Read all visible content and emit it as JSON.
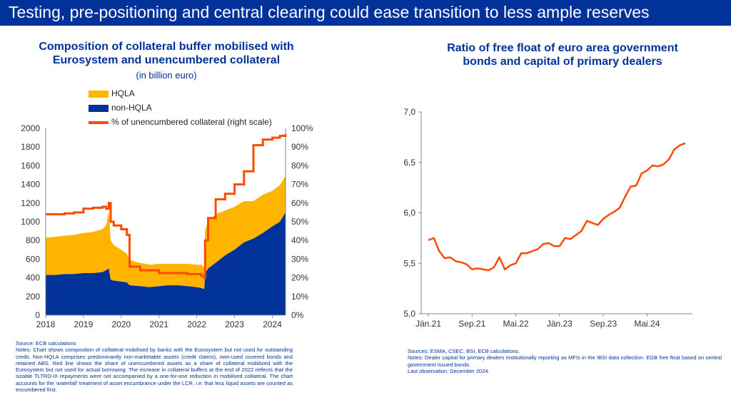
{
  "banner": {
    "title": "Testing, pre-positioning and central clearing could ease transition to less ample reserves"
  },
  "colors": {
    "banner": "#003299",
    "hqla": "#FFB400",
    "non_hqla": "#003299",
    "line": "#FF4B00"
  },
  "left_chart": {
    "title_line1": "Composition of collateral buffer mobilised with",
    "title_line2": "Eurosystem and unencumbered collateral",
    "subtitle": "(in billion euro)",
    "legend": {
      "hqla": "HQLA",
      "non_hqla": "non-HQLA",
      "line": "% of unencumbered collateral (right scale)"
    },
    "notes": {
      "source": "Source: ECB calculations",
      "body": "Notes: Chart shows composition of collateral mobilised by banks with the Eurosystem but not used for outstanding credit. Non-HQLA comprises predominantly non-marketable assets (credit claims), own-used covered bonds and retained ABS. Red line shows the share of unencumbered assets as a share of collateral mobilized with the Eurosystem but not used for actual borrowing. The increase in collateral buffers at the end of 2022 reflects that the sizable TLTRO-III repayments were not accompanied by a one-for-one reduction in mobilised collateral. The chart accounts for the ‘waterfall’ treatment of asset encumbrance under the LCR, i.e. that less liquid assets are counted as encumbered first."
    }
  },
  "right_chart": {
    "title_line1": "Ratio of free float of euro area government",
    "title_line2": "bonds and capital of primary dealers",
    "notes": {
      "source": "Sources: ESMA, CSEC, BSI, ECB calculations.",
      "body": "Notes: Dealer capital for primary dealers institutionally reporting as MFIs in the IBSI data collection. EGB free float based on central government issued bonds.",
      "last": "Last observation: December 2024."
    }
  },
  "chart_data": [
    {
      "type": "area",
      "title": "Composition of collateral buffer mobilised with Eurosystem and unencumbered collateral",
      "subtitle": "(in billion euro)",
      "x_ticks": [
        "2018",
        "2019",
        "2020",
        "2021",
        "2022",
        "2023",
        "2024"
      ],
      "xlim": [
        2018.0,
        2024.35
      ],
      "ylim": [
        0,
        2000
      ],
      "y_ticks": [
        "0",
        "200",
        "400",
        "600",
        "800",
        "1000",
        "1200",
        "1400",
        "1600",
        "1800",
        "2000"
      ],
      "y2lim": [
        0,
        100
      ],
      "y2_ticks": [
        "0%",
        "10%",
        "20%",
        "30%",
        "40%",
        "50%",
        "60%",
        "70%",
        "80%",
        "90%",
        "100%"
      ],
      "legend_position": "top",
      "x": [
        2018.0,
        2018.25,
        2018.5,
        2018.75,
        2019.0,
        2019.25,
        2019.5,
        2019.6,
        2019.67,
        2019.72,
        2019.8,
        2020.0,
        2020.15,
        2020.22,
        2020.5,
        2020.75,
        2021.0,
        2021.25,
        2021.5,
        2021.75,
        2022.0,
        2022.12,
        2022.2,
        2022.22,
        2022.3,
        2022.5,
        2022.75,
        2023.0,
        2023.25,
        2023.5,
        2023.75,
        2024.0,
        2024.2,
        2024.35
      ],
      "series": [
        {
          "name": "non-HQLA",
          "kind": "stacked_area",
          "values": [
            430,
            430,
            440,
            440,
            450,
            450,
            460,
            480,
            500,
            380,
            370,
            360,
            350,
            320,
            310,
            300,
            310,
            320,
            320,
            310,
            300,
            290,
            280,
            450,
            500,
            560,
            640,
            700,
            780,
            820,
            880,
            950,
            1000,
            1100
          ]
        },
        {
          "name": "HQLA",
          "kind": "stacked_area",
          "values": [
            400,
            410,
            410,
            420,
            430,
            440,
            460,
            480,
            620,
            420,
            380,
            340,
            310,
            270,
            250,
            240,
            240,
            230,
            230,
            240,
            240,
            250,
            230,
            460,
            510,
            520,
            480,
            460,
            440,
            400,
            410,
            380,
            390,
            390
          ]
        },
        {
          "name": "% of unencumbered collateral (right scale)",
          "kind": "line",
          "axis": "right",
          "values": [
            54,
            54,
            54.5,
            55,
            57,
            57.5,
            58,
            57,
            60,
            50,
            48,
            46,
            43,
            26,
            24,
            24,
            22.5,
            22.5,
            22.5,
            22,
            22,
            21,
            20,
            40,
            52,
            62,
            65,
            70,
            77,
            91,
            94,
            95,
            96,
            97
          ]
        }
      ]
    },
    {
      "type": "line",
      "title": "Ratio of free float of euro area government bonds and capital of primary dealers",
      "x_ticks": [
        "Jän.21",
        "Sep.21",
        "Mai.22",
        "Jän.23",
        "Sep.23",
        "Mai.24"
      ],
      "ylim": [
        5.0,
        7.0
      ],
      "y_ticks": [
        "5,0",
        "5,5",
        "6,0",
        "6,5",
        "7,0"
      ],
      "x_start": "2021-01",
      "x_end": "2024-12",
      "series": [
        {
          "values": [
            5.73,
            5.75,
            5.62,
            5.55,
            5.56,
            5.52,
            5.51,
            5.49,
            5.44,
            5.45,
            5.44,
            5.43,
            5.46,
            5.56,
            5.44,
            5.48,
            5.5,
            5.6,
            5.6,
            5.62,
            5.64,
            5.69,
            5.7,
            5.67,
            5.67,
            5.75,
            5.74,
            5.78,
            5.82,
            5.92,
            5.9,
            5.88,
            5.94,
            5.98,
            6.01,
            6.05,
            6.16,
            6.26,
            6.27,
            6.39,
            6.42,
            6.47,
            6.46,
            6.48,
            6.53,
            6.63,
            6.67,
            6.69
          ]
        }
      ]
    }
  ]
}
